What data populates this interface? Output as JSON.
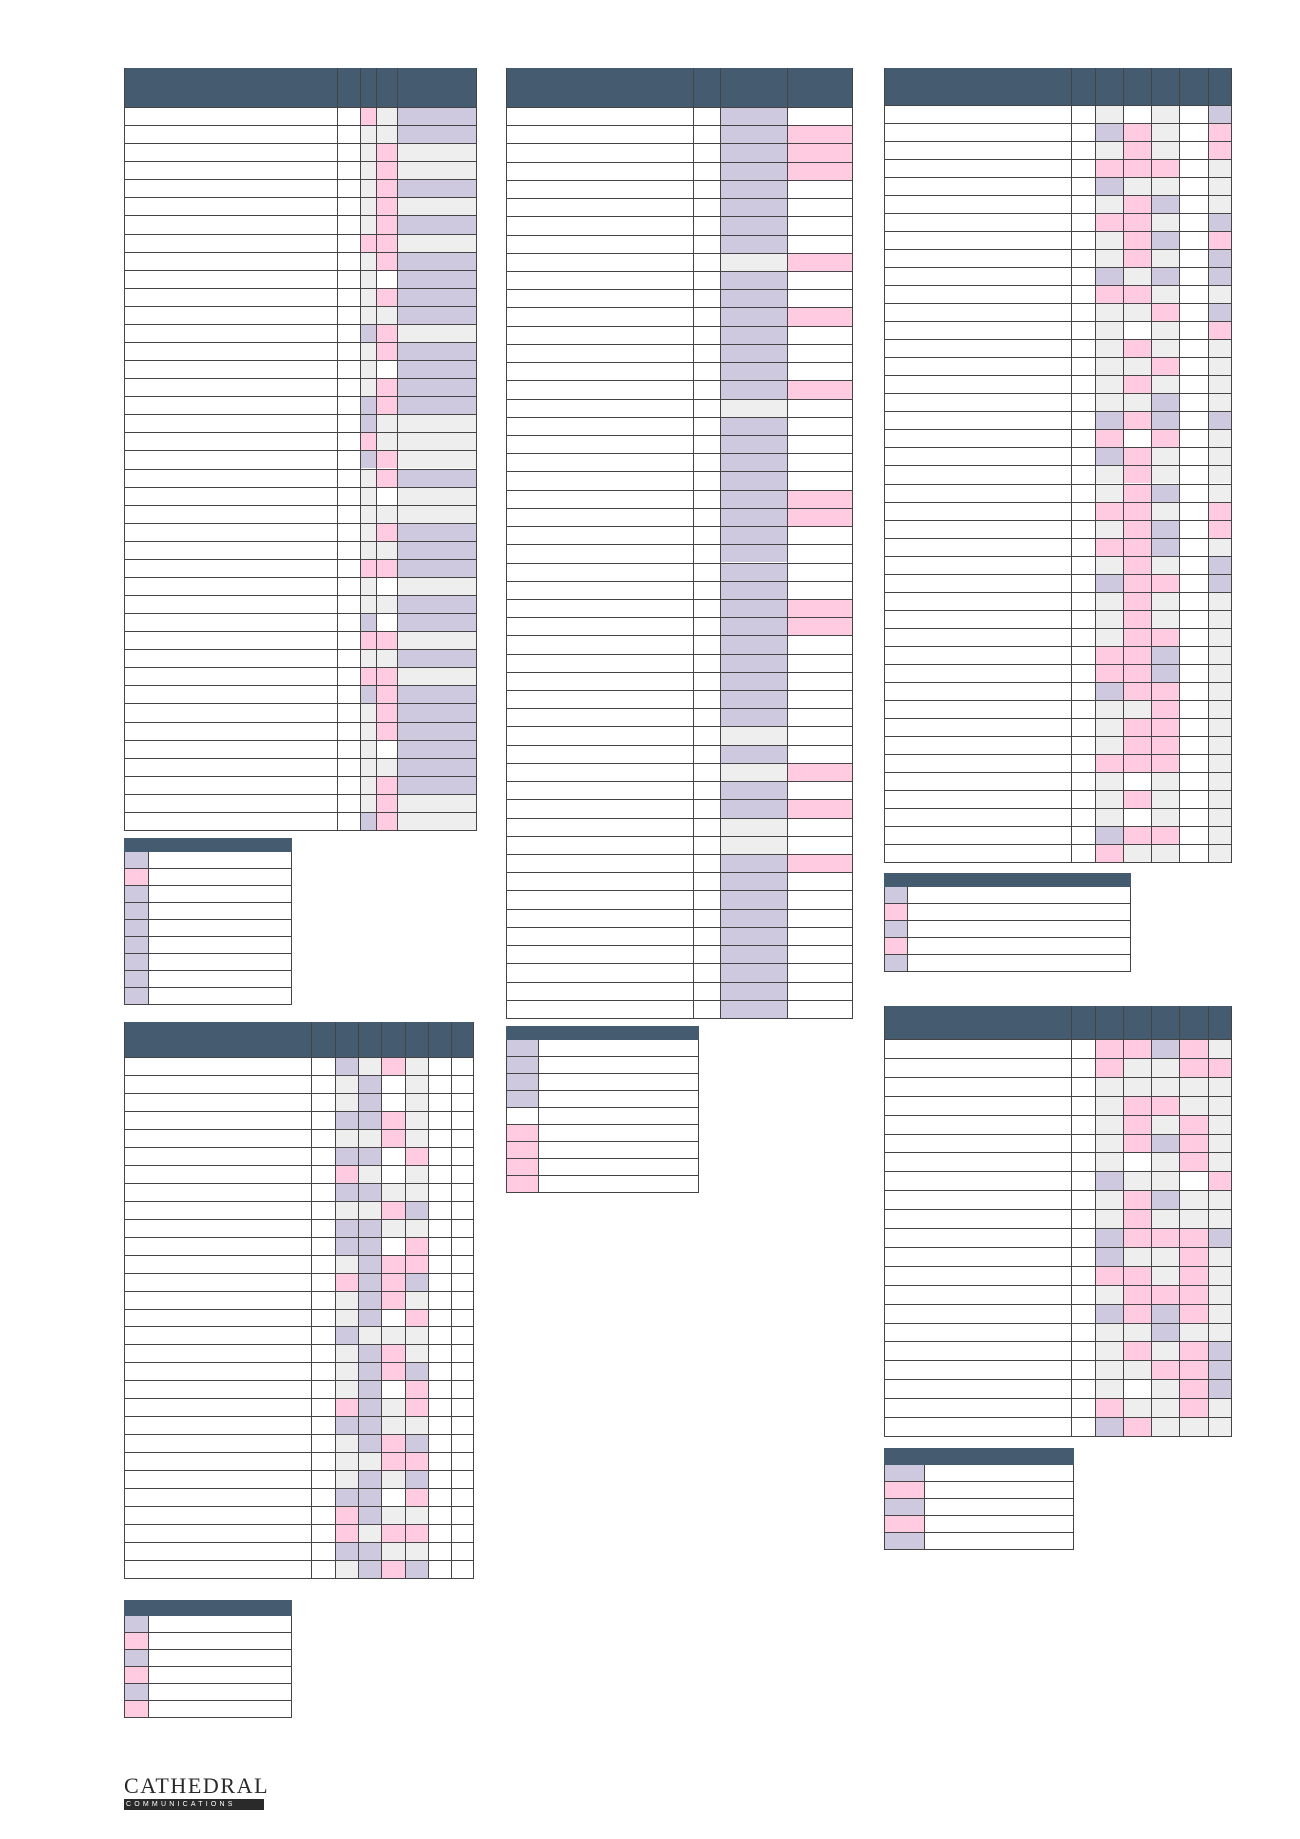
{
  "colors": {
    "header": "#445b70",
    "lavender": "#cfc9df",
    "pink": "#fecbe0",
    "grey": "#eeeeee",
    "border": "#444444"
  },
  "tables": [
    {
      "id": "t1",
      "cols": [
        "blank",
        "blank",
        "grey",
        "pink",
        "lavender"
      ],
      "rows": 40,
      "pattern": "G,L,P,L,G"
    },
    {
      "id": "t2",
      "cols": [
        "blank",
        "blank",
        "lavender",
        "pink"
      ],
      "rows": 50,
      "pattern": "L,P"
    },
    {
      "id": "t3",
      "cols": [
        "blank",
        "blank",
        "grey",
        "pink",
        "grey",
        "blank",
        "grey"
      ],
      "rows": 42,
      "pattern": "P,G,L"
    },
    {
      "id": "t4",
      "cols": [
        "blank",
        "blank",
        "grey",
        "lavender",
        "pink",
        "grey",
        "blank"
      ],
      "rows": 29,
      "pattern": "L,P,G"
    },
    {
      "id": "t5",
      "cols": [
        "blank",
        "blank",
        "grey",
        "pink",
        "grey",
        "pink",
        "grey"
      ],
      "rows": 21,
      "pattern": "L,P,G"
    }
  ],
  "legends": [
    {
      "id": "legend1",
      "swatches": [
        "lavender",
        "pink",
        "lavender",
        "lavender",
        "lavender",
        "lavender",
        "lavender",
        "lavender",
        "lavender"
      ]
    },
    {
      "id": "legend2",
      "swatches": [
        "lavender",
        "lavender",
        "lavender",
        "lavender",
        "blank",
        "pink",
        "pink",
        "pink",
        "pink"
      ]
    },
    {
      "id": "legend3",
      "swatches": [
        "lavender",
        "pink",
        "lavender",
        "pink",
        "lavender"
      ]
    },
    {
      "id": "legend4",
      "swatches": [
        "lavender",
        "pink",
        "lavender",
        "pink",
        "lavender",
        "pink"
      ]
    },
    {
      "id": "legend5",
      "swatches": [
        "lavender",
        "pink",
        "lavender",
        "pink",
        "lavender"
      ]
    }
  ],
  "logo": {
    "name": "CATHEDRAL",
    "tagline": "COMMUNICATIONS"
  }
}
